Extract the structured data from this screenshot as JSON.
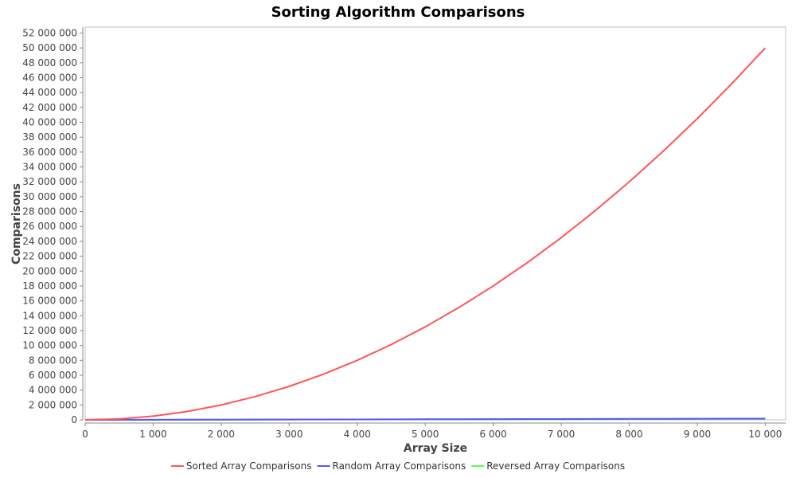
{
  "chart_data": {
    "type": "line",
    "title": "Sorting Algorithm Comparisons",
    "xlabel": "Array Size",
    "ylabel": "Comparisons",
    "xlim": [
      0,
      10300
    ],
    "ylim": [
      0,
      52800000
    ],
    "x_ticks": [
      0,
      1000,
      2000,
      3000,
      4000,
      5000,
      6000,
      7000,
      8000,
      9000,
      10000
    ],
    "x_tick_labels": [
      "0",
      "1 000",
      "2 000",
      "3 000",
      "4 000",
      "5 000",
      "6 000",
      "7 000",
      "8 000",
      "9 000",
      "10 000"
    ],
    "y_ticks": [
      0,
      2000000,
      4000000,
      6000000,
      8000000,
      10000000,
      12000000,
      14000000,
      16000000,
      18000000,
      20000000,
      22000000,
      24000000,
      26000000,
      28000000,
      30000000,
      32000000,
      34000000,
      36000000,
      38000000,
      40000000,
      42000000,
      44000000,
      46000000,
      48000000,
      50000000,
      52000000
    ],
    "y_tick_labels": [
      "0",
      "2 000 000",
      "4 000 000",
      "6 000 000",
      "8 000 000",
      "10 000 000",
      "12 000 000",
      "14 000 000",
      "16 000 000",
      "18 000 000",
      "20 000 000",
      "22 000 000",
      "24 000 000",
      "26 000 000",
      "28 000 000",
      "30 000 000",
      "32 000 000",
      "34 000 000",
      "36 000 000",
      "38 000 000",
      "40 000 000",
      "42 000 000",
      "44 000 000",
      "46 000 000",
      "48 000 000",
      "50 000 000",
      "52 000 000"
    ],
    "grid": false,
    "legend_position": "bottom",
    "x": [
      0,
      500,
      1000,
      1500,
      2000,
      2500,
      3000,
      3500,
      4000,
      4500,
      5000,
      5500,
      6000,
      6500,
      7000,
      7500,
      8000,
      8500,
      9000,
      9500,
      10000
    ],
    "series": [
      {
        "name": "Sorted Array Comparisons",
        "color": "#ff5555",
        "values": [
          0,
          124750,
          499500,
          1124250,
          1999000,
          3123750,
          4498500,
          6123250,
          7998000,
          10122750,
          12497500,
          15122250,
          17997000,
          21121750,
          24496500,
          28121250,
          31996000,
          36120750,
          40495500,
          45120250,
          49995000
        ]
      },
      {
        "name": "Random Array Comparisons",
        "color": "#5555ff",
        "values": [
          0,
          6000,
          13000,
          20500,
          28000,
          36000,
          44000,
          52000,
          60500,
          69000,
          77500,
          86000,
          95000,
          103500,
          112500,
          121500,
          130500,
          139500,
          148500,
          158000,
          167000
        ]
      },
      {
        "name": "Reversed Array Comparisons",
        "color": "#55ff55",
        "values": [
          0,
          4300,
          9900,
          15800,
          21900,
          28200,
          34500,
          41000,
          47800,
          54300,
          61100,
          67900,
          73500,
          80200,
          87000,
          94500,
          101400,
          108600,
          116000,
          123200,
          130500
        ]
      }
    ]
  }
}
